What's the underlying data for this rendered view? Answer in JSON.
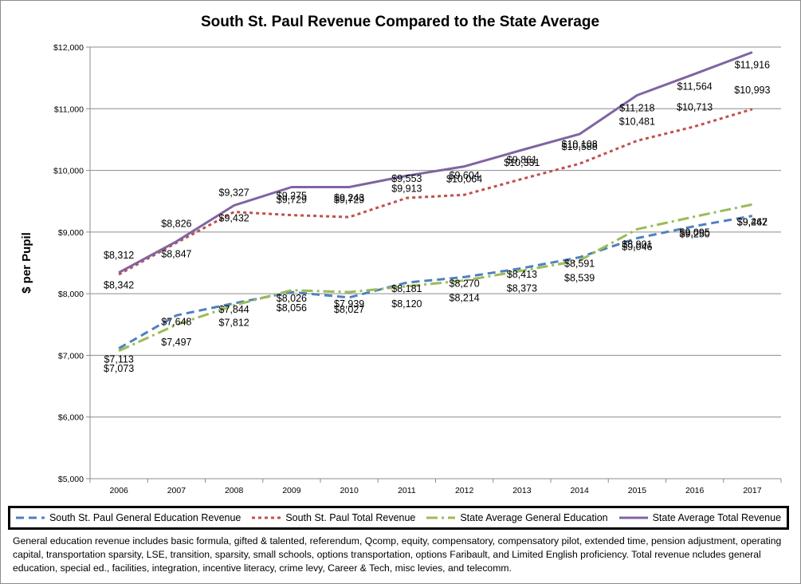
{
  "chart_data": {
    "type": "line",
    "title": "South St. Paul Revenue Compared to the State Average",
    "ylabel": "$ per Pupil",
    "xlabel": "",
    "ylim": [
      5000,
      12000
    ],
    "y_ticks": [
      "$5,000",
      "$6,000",
      "$7,000",
      "$8,000",
      "$9,000",
      "$10,000",
      "$11,000",
      "$12,000"
    ],
    "categories": [
      "2006",
      "2007",
      "2008",
      "2009",
      "2010",
      "2011",
      "2012",
      "2013",
      "2014",
      "2015",
      "2016",
      "2017"
    ],
    "grid": "horizontal",
    "legend_position": "bottom",
    "series": [
      {
        "name": "South St. Paul General Education Revenue",
        "color": "#4f81bd",
        "dash": "dashed",
        "values": [
          7113,
          7648,
          7844,
          8026,
          7939,
          8181,
          8270,
          8413,
          8591,
          8901,
          9095,
          9262
        ],
        "labels": [
          "$7,113",
          "$7,648",
          "$7,844",
          "$8,026",
          "$7,939",
          "$8,181",
          "$8,270",
          "$8,413",
          "$8,591",
          "$8,901",
          "$9,095",
          "$9,262"
        ]
      },
      {
        "name": "South St. Paul Total Revenue",
        "color": "#c0504d",
        "dash": "dotted",
        "values": [
          8312,
          8826,
          9327,
          9275,
          9243,
          9553,
          9604,
          9861,
          10108,
          10481,
          10713,
          10993
        ],
        "labels": [
          "$8,312",
          "$8,826",
          "$9,327",
          "$9,275",
          "$9,243",
          "$9,553",
          "$9,604",
          "$9,861",
          "$10,108",
          "$10,481",
          "$10,713",
          "$10,993"
        ]
      },
      {
        "name": "State Average General Education",
        "color": "#9bbb59",
        "dash": "dashdot",
        "values": [
          7073,
          7497,
          7812,
          8056,
          8027,
          8120,
          8214,
          8373,
          8539,
          9046,
          9250,
          9447
        ],
        "labels": [
          "$7,073",
          "$7,497",
          "$7,812",
          "$8,056",
          "$8,027",
          "$8,120",
          "$8,214",
          "$8,373",
          "$8,539",
          "$9,046",
          "$9,250",
          "$9,447"
        ]
      },
      {
        "name": "State Average Total Revenue",
        "color": "#8064a2",
        "dash": "solid",
        "values": [
          8342,
          8847,
          9432,
          9729,
          9729,
          9913,
          10064,
          10331,
          10588,
          11218,
          11564,
          11916
        ],
        "labels": [
          "$8,342",
          "$8,847",
          "$9,432",
          "$9,729",
          "$9,729",
          "$9,913",
          "$10,064",
          "$10,331",
          "$10,588",
          "$11,218",
          "$11,564",
          "$11,916"
        ]
      }
    ]
  },
  "footnote": "General education revenue includes basic formula, gifted & talented, referendum, Qcomp, equity, compensatory, compensatory pilot, extended time, pension adjustment, operating capital, transportation sparsity, LSE, transition, sparsity, small schools, options transportation, options Faribault, and Limited English proficiency.  Total revenue ncludes general education, special ed., facilities, integration, incentive literacy, crime levy, Career & Tech, misc levies, and telecomm."
}
